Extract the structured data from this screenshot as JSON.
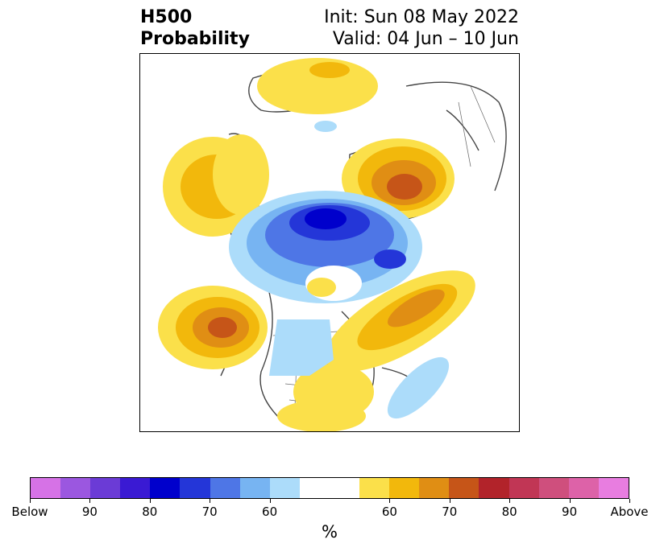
{
  "header": {
    "title_line1": "H500",
    "title_line2": "Probability",
    "init": "Init: Sun 08 May 2022",
    "valid": "Valid: 04 Jun – 10 Jun"
  },
  "colorbar": {
    "unit": "%",
    "colors": [
      "#d672e6",
      "#9b57e0",
      "#6b3bd6",
      "#3a1ad3",
      "#0000cc",
      "#2436d8",
      "#4e76e6",
      "#77b4f2",
      "#acdcfa",
      "#ffffff",
      "#fbe04a",
      "#f2b80c",
      "#e08e14",
      "#c65518",
      "#b2232a",
      "#c13655",
      "#cf4f7d",
      "#dd62a8",
      "#e87de0"
    ],
    "tick_labels": [
      "Below",
      "90",
      "80",
      "70",
      "60",
      "60",
      "70",
      "80",
      "90",
      "Above"
    ]
  },
  "map": {
    "legend_meaning": [
      "below-normal heights (blue)",
      "above-normal heights (orange/red)"
    ]
  }
}
